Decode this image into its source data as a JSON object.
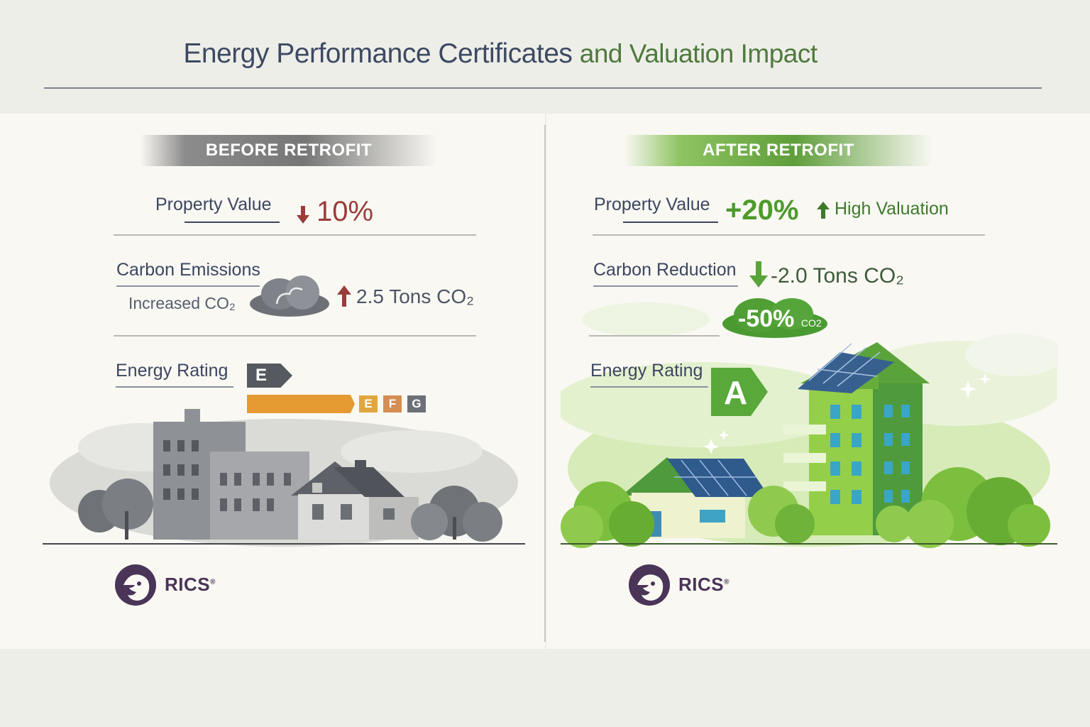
{
  "header": {
    "title_part1": "Energy Performance Certificates",
    "title_part2": "and Valuation Impact"
  },
  "before": {
    "banner": "BEFORE RETROFIT",
    "property_value_label": "Property Value",
    "property_value_change": "10%",
    "carbon_label": "Carbon Emissions",
    "carbon_sublabel": "Increased CO₂",
    "carbon_value": "2.5 Tons CO₂",
    "energy_rating_label": "Energy Rating",
    "rating_letter": "E",
    "rating_scale": [
      "E",
      "F",
      "G"
    ],
    "logo": "RICS"
  },
  "after": {
    "banner": "AFTER RETROFIT",
    "property_value_label": "Property Value",
    "property_value_change": "+20%",
    "valuation_note": "High Valuation",
    "carbon_label": "Carbon Reduction",
    "carbon_value": "-2.0 Tons CO₂",
    "co2_badge_value": "-50%",
    "co2_badge_unit": "CO2",
    "energy_rating_label": "Energy Rating",
    "rating_letter": "A",
    "logo": "RICS"
  },
  "colors": {
    "title_blue": "#3d4a63",
    "title_green": "#4e7a3c",
    "negative_red": "#9a3c3a",
    "positive_green": "#4e9a2c",
    "rating_e_orange": "#e69a32",
    "rating_a_green": "#58a83a",
    "rics_purple": "#4a3458"
  },
  "icons": {
    "down_arrow": "arrow-down-icon",
    "up_arrow": "arrow-up-icon",
    "cloud": "cloud-icon",
    "sparkle": "sparkle-icon",
    "logo": "rics-lion-logo"
  }
}
